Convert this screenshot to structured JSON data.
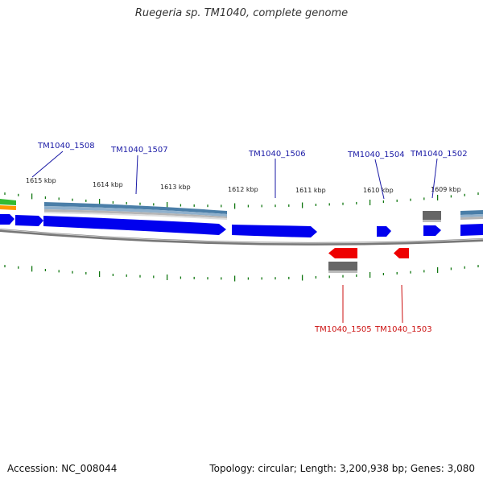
{
  "title": "Ruegeria sp. TM1040, complete genome",
  "footer": {
    "accession": "Accession: NC_008044",
    "summary": "Topology: circular; Length: 3,200,938 bp; Genes: 3,080"
  },
  "colors": {
    "forward_gene": "#0000ee",
    "reverse_gene": "#ee0000",
    "backbone": "#888888",
    "tick": "#117711",
    "rna_band": "#4a7ea8",
    "gray_feature": "#666666",
    "green_feature": "#33bb33",
    "orange_feature": "#ff9900",
    "forward_label": "#1a1aa6",
    "reverse_label": "#cc1111"
  },
  "ticks": [
    {
      "label": "1615 kbp"
    },
    {
      "label": "1614 kbp"
    },
    {
      "label": "1613 kbp"
    },
    {
      "label": "1612 kbp"
    },
    {
      "label": "1611 kbp"
    },
    {
      "label": "1610 kbp"
    },
    {
      "label": "1609 kbp"
    }
  ],
  "forward_genes": [
    {
      "label": "TM1040_1508"
    },
    {
      "label": "TM1040_1507"
    },
    {
      "label": "TM1040_1506"
    },
    {
      "label": "TM1040_1504"
    },
    {
      "label": "TM1040_1502"
    }
  ],
  "reverse_genes": [
    {
      "label": "TM1040_1505"
    },
    {
      "label": "TM1040_1503"
    }
  ]
}
